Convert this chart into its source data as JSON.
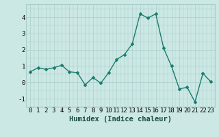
{
  "x": [
    0,
    1,
    2,
    3,
    4,
    5,
    6,
    7,
    8,
    9,
    10,
    11,
    12,
    13,
    14,
    15,
    16,
    17,
    18,
    19,
    20,
    21,
    22,
    23
  ],
  "y": [
    0.65,
    0.9,
    0.8,
    0.9,
    1.05,
    0.65,
    0.6,
    -0.15,
    0.3,
    -0.05,
    0.6,
    1.4,
    1.7,
    2.35,
    4.2,
    3.95,
    4.2,
    2.1,
    1.0,
    -0.4,
    -0.3,
    -1.2,
    0.55,
    0.05
  ],
  "line_color": "#1a7a6e",
  "marker": "D",
  "marker_size": 2.5,
  "line_width": 1.0,
  "xlabel": "Humidex (Indice chaleur)",
  "xlim": [
    -0.5,
    23.5
  ],
  "ylim": [
    -1.5,
    4.8
  ],
  "yticks": [
    -1,
    0,
    1,
    2,
    3,
    4
  ],
  "xticks": [
    0,
    1,
    2,
    3,
    4,
    5,
    6,
    7,
    8,
    9,
    10,
    11,
    12,
    13,
    14,
    15,
    16,
    17,
    18,
    19,
    20,
    21,
    22,
    23
  ],
  "background_color": "#cce8e4",
  "grid_color": "#aacfcb",
  "xlabel_fontsize": 7.5,
  "tick_fontsize": 6.5
}
